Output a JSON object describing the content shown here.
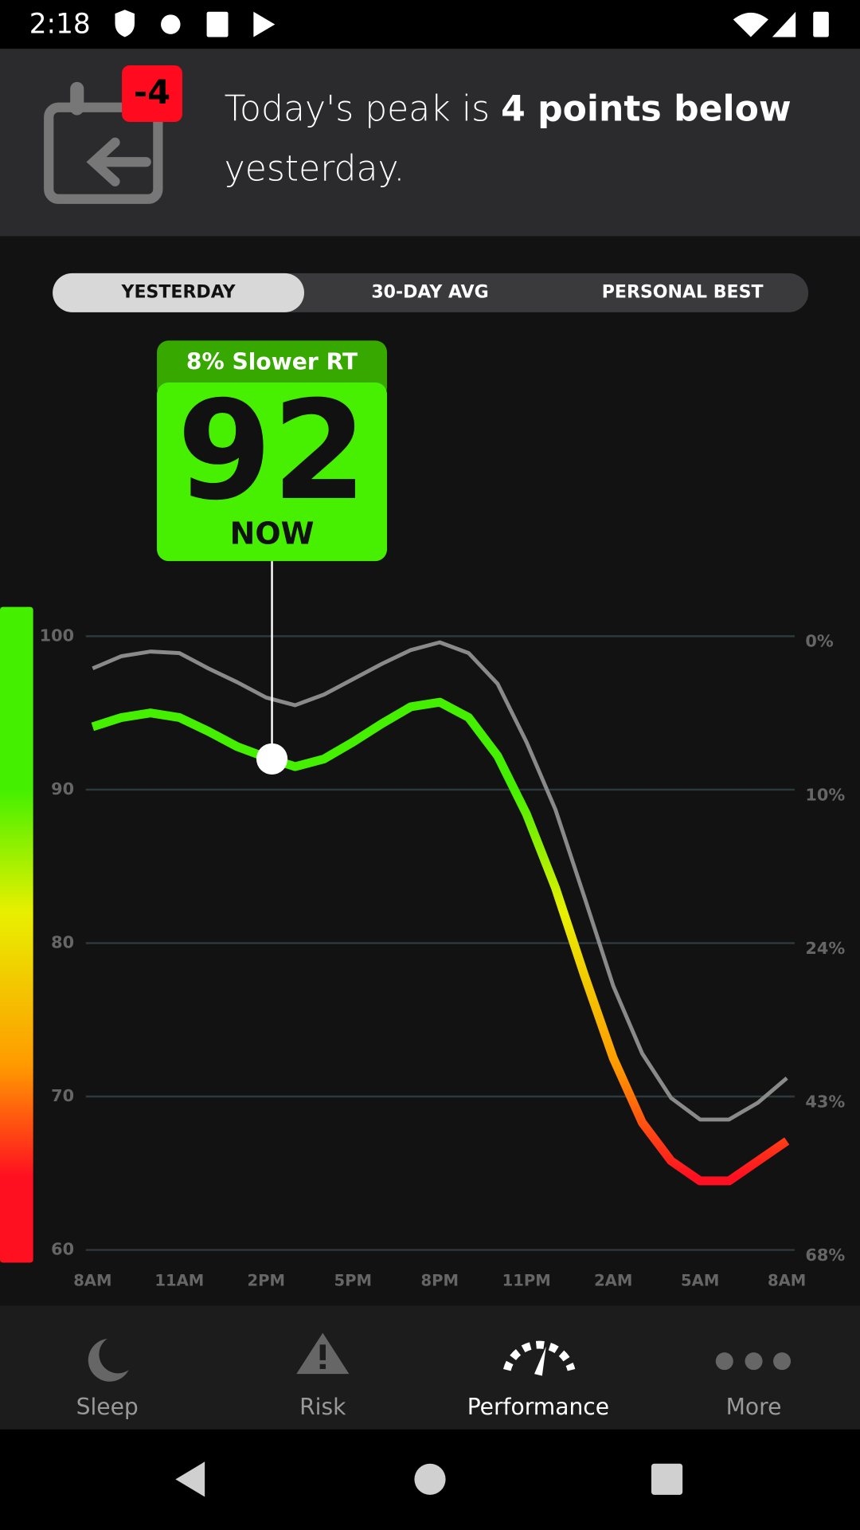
{
  "status_bar": {
    "time": "2:18"
  },
  "banner": {
    "badge": "-4",
    "text_before": "Today's peak is ",
    "text_bold": "4 points below",
    "text_after": "yesterday."
  },
  "tabs": [
    "YESTERDAY",
    "30-DAY AVG",
    "PERSONAL BEST"
  ],
  "chart_data": {
    "type": "line",
    "x": [
      0,
      1,
      2,
      3,
      4,
      5,
      6,
      7,
      8,
      9,
      10,
      11,
      12,
      13,
      14,
      15,
      16,
      17,
      18,
      19,
      20,
      21,
      22,
      23,
      24
    ],
    "xlim": [
      0,
      24
    ],
    "xticks": [
      {
        "value": 0,
        "label": "8AM"
      },
      {
        "value": 3,
        "label": "11AM"
      },
      {
        "value": 6,
        "label": "2PM"
      },
      {
        "value": 9,
        "label": "5PM"
      },
      {
        "value": 12,
        "label": "8PM"
      },
      {
        "value": 15,
        "label": "11PM"
      },
      {
        "value": 18,
        "label": "2AM"
      },
      {
        "value": 21,
        "label": "5AM"
      },
      {
        "value": 24,
        "label": "8AM"
      }
    ],
    "ylim": [
      60,
      100
    ],
    "yticks": [
      100,
      90,
      80,
      70,
      60
    ],
    "y2_labels": [
      "0%",
      "10%",
      "24%",
      "43%",
      "68%"
    ],
    "grid": true,
    "series": [
      {
        "color": "#8a8a8a",
        "values": [
          97.9,
          98.7,
          99.0,
          98.9,
          97.9,
          97.0,
          96.0,
          95.5,
          96.2,
          97.2,
          98.2,
          99.1,
          99.6,
          98.9,
          96.9,
          93.1,
          88.7,
          83.0,
          77.2,
          72.8,
          69.9,
          68.5,
          68.5,
          69.6,
          71.2
        ]
      },
      {
        "color": "gradient",
        "values": [
          94.1,
          94.7,
          95.0,
          94.7,
          93.8,
          92.8,
          92.1,
          91.5,
          92.0,
          93.1,
          94.3,
          95.4,
          95.7,
          94.7,
          92.2,
          88.4,
          83.6,
          77.9,
          72.5,
          68.3,
          65.8,
          64.5,
          64.5,
          65.8,
          67.1
        ]
      }
    ],
    "annotation": {
      "x": 6.2,
      "value": 92,
      "header": "8% Slower RT",
      "label": "NOW"
    }
  },
  "nav": [
    "Sleep",
    "Risk",
    "Performance",
    "More"
  ]
}
